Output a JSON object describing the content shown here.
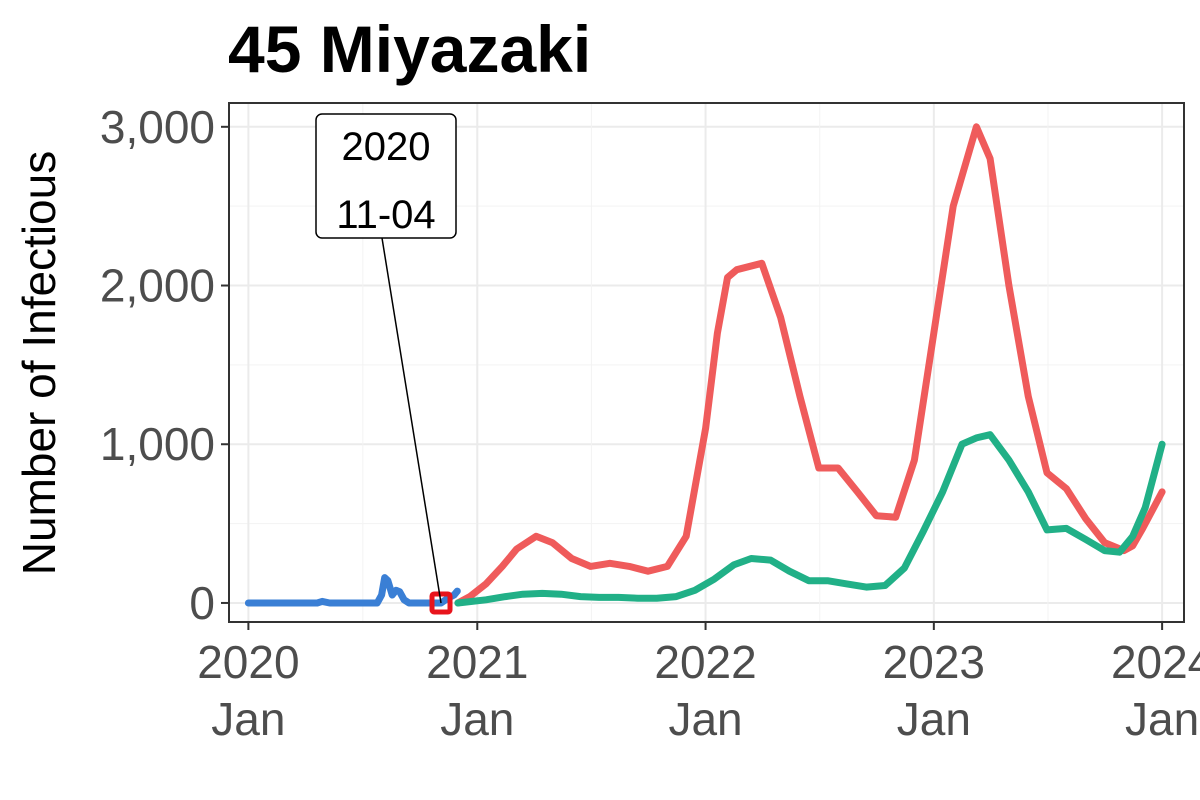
{
  "chart_data": {
    "type": "line",
    "title": "45 Miyazaki",
    "xlabel": "",
    "ylabel": "Number of Infectious",
    "xlim": [
      "2019-12-01",
      "2024-02-05"
    ],
    "ylim": [
      -120,
      3150
    ],
    "grid": true,
    "legend": "none",
    "x_ticks": [
      {
        "date": "2020-01-01",
        "year": "2020",
        "month": "Jan"
      },
      {
        "date": "2021-01-01",
        "year": "2021",
        "month": "Jan"
      },
      {
        "date": "2022-01-01",
        "year": "2022",
        "month": "Jan"
      },
      {
        "date": "2023-01-01",
        "year": "2023",
        "month": "Jan"
      },
      {
        "date": "2024-01-01",
        "year": "2024",
        "month": "Jan"
      }
    ],
    "y_ticks": [
      {
        "value": 0,
        "label": "0"
      },
      {
        "value": 1000,
        "label": "1,000"
      },
      {
        "value": 2000,
        "label": "2,000"
      },
      {
        "value": 3000,
        "label": "3,000"
      }
    ],
    "series": [
      {
        "color": "#3a7fd5",
        "points": [
          [
            "2020-01-01",
            0
          ],
          [
            "2020-04-20",
            0
          ],
          [
            "2020-04-28",
            10
          ],
          [
            "2020-05-10",
            0
          ],
          [
            "2020-07-25",
            0
          ],
          [
            "2020-08-01",
            50
          ],
          [
            "2020-08-06",
            160
          ],
          [
            "2020-08-11",
            140
          ],
          [
            "2020-08-18",
            50
          ],
          [
            "2020-08-24",
            80
          ],
          [
            "2020-08-30",
            70
          ],
          [
            "2020-09-06",
            20
          ],
          [
            "2020-09-14",
            0
          ],
          [
            "2020-10-20",
            0
          ],
          [
            "2020-11-04",
            0
          ],
          [
            "2020-11-15",
            30
          ],
          [
            "2020-11-25",
            50
          ],
          [
            "2020-11-30",
            75
          ]
        ]
      },
      {
        "color": "#ef5b5b",
        "points": [
          [
            "2020-12-01",
            0
          ],
          [
            "2020-12-20",
            40
          ],
          [
            "2021-01-15",
            120
          ],
          [
            "2021-02-10",
            230
          ],
          [
            "2021-03-05",
            340
          ],
          [
            "2021-04-05",
            420
          ],
          [
            "2021-05-01",
            380
          ],
          [
            "2021-06-01",
            280
          ],
          [
            "2021-07-01",
            230
          ],
          [
            "2021-08-01",
            250
          ],
          [
            "2021-09-01",
            230
          ],
          [
            "2021-10-01",
            200
          ],
          [
            "2021-11-01",
            230
          ],
          [
            "2021-12-01",
            420
          ],
          [
            "2022-01-01",
            1100
          ],
          [
            "2022-01-20",
            1700
          ],
          [
            "2022-02-05",
            2050
          ],
          [
            "2022-02-20",
            2100
          ],
          [
            "2022-04-01",
            2140
          ],
          [
            "2022-05-01",
            1800
          ],
          [
            "2022-06-01",
            1300
          ],
          [
            "2022-07-01",
            850
          ],
          [
            "2022-08-01",
            850
          ],
          [
            "2022-09-01",
            700
          ],
          [
            "2022-10-01",
            550
          ],
          [
            "2022-11-01",
            540
          ],
          [
            "2022-12-01",
            900
          ],
          [
            "2023-01-01",
            1700
          ],
          [
            "2023-02-01",
            2500
          ],
          [
            "2023-03-10",
            3000
          ],
          [
            "2023-04-01",
            2800
          ],
          [
            "2023-05-01",
            2000
          ],
          [
            "2023-06-01",
            1300
          ],
          [
            "2023-07-01",
            820
          ],
          [
            "2023-08-01",
            720
          ],
          [
            "2023-09-01",
            530
          ],
          [
            "2023-10-01",
            380
          ],
          [
            "2023-11-01",
            330
          ],
          [
            "2023-11-15",
            360
          ],
          [
            "2023-12-01",
            470
          ],
          [
            "2024-01-01",
            700
          ]
        ]
      },
      {
        "color": "#21b087",
        "points": [
          [
            "2020-12-01",
            0
          ],
          [
            "2021-01-15",
            20
          ],
          [
            "2021-02-15",
            40
          ],
          [
            "2021-03-15",
            55
          ],
          [
            "2021-04-15",
            60
          ],
          [
            "2021-05-15",
            55
          ],
          [
            "2021-06-15",
            40
          ],
          [
            "2021-07-15",
            35
          ],
          [
            "2021-08-15",
            35
          ],
          [
            "2021-09-15",
            30
          ],
          [
            "2021-10-15",
            30
          ],
          [
            "2021-11-15",
            40
          ],
          [
            "2021-12-15",
            80
          ],
          [
            "2022-01-15",
            150
          ],
          [
            "2022-02-15",
            240
          ],
          [
            "2022-03-15",
            280
          ],
          [
            "2022-04-15",
            270
          ],
          [
            "2022-05-15",
            200
          ],
          [
            "2022-06-15",
            140
          ],
          [
            "2022-07-15",
            140
          ],
          [
            "2022-08-15",
            120
          ],
          [
            "2022-09-15",
            100
          ],
          [
            "2022-10-15",
            110
          ],
          [
            "2022-11-15",
            220
          ],
          [
            "2022-12-15",
            450
          ],
          [
            "2023-01-15",
            700
          ],
          [
            "2023-02-15",
            1000
          ],
          [
            "2023-03-10",
            1040
          ],
          [
            "2023-04-01",
            1060
          ],
          [
            "2023-05-01",
            900
          ],
          [
            "2023-06-01",
            700
          ],
          [
            "2023-07-01",
            460
          ],
          [
            "2023-08-01",
            470
          ],
          [
            "2023-09-01",
            400
          ],
          [
            "2023-10-01",
            330
          ],
          [
            "2023-10-25",
            320
          ],
          [
            "2023-11-15",
            420
          ],
          [
            "2023-12-05",
            600
          ],
          [
            "2024-01-01",
            1000
          ]
        ]
      }
    ],
    "highlight": {
      "date": "2020-11-04",
      "value": 0,
      "color": "#e8141c"
    },
    "annotation": {
      "line1": "2020",
      "line2": "11-04"
    }
  }
}
